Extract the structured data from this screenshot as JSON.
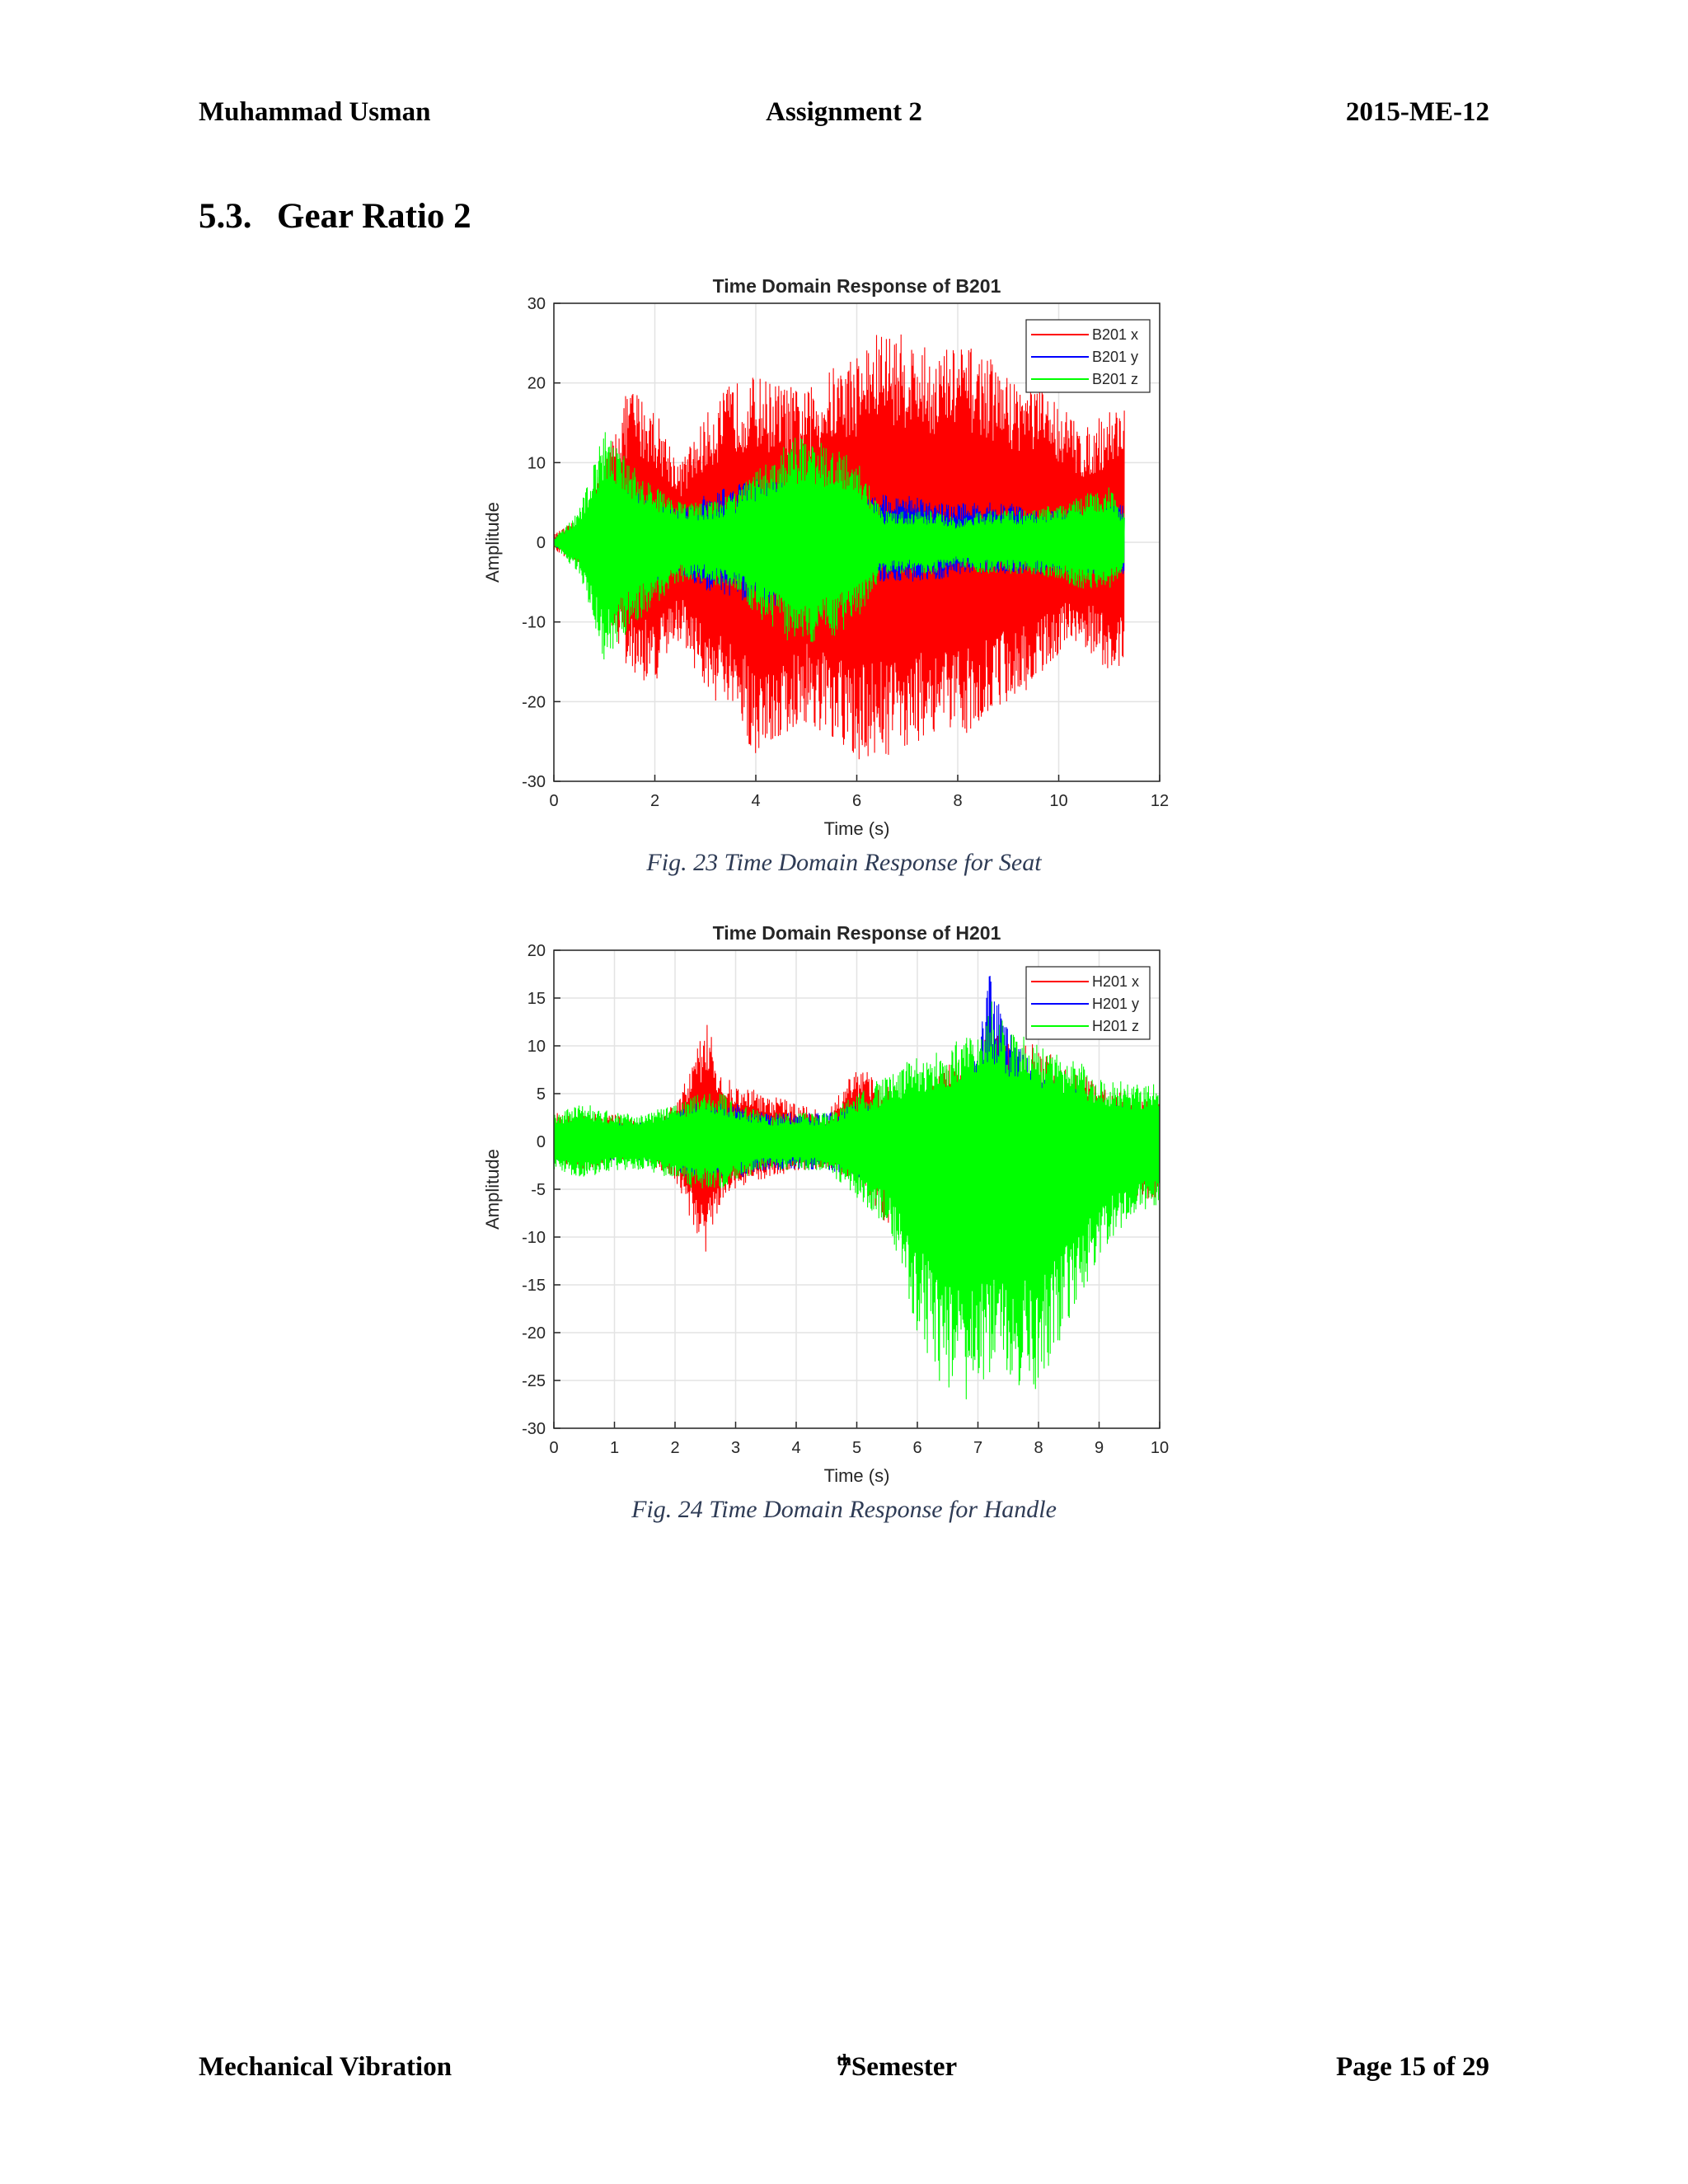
{
  "header": {
    "left": "Muhammad Usman",
    "center": "Assignment 2",
    "right": "2015-ME-12"
  },
  "section": {
    "number": "5.3.",
    "title": "Gear Ratio 2"
  },
  "figures": [
    {
      "caption": "Fig.  23 Time Domain Response for Seat"
    },
    {
      "caption": "Fig.  24 Time Domain Response for Handle"
    }
  ],
  "footer": {
    "left": "Mechanical Vibration",
    "center_num": "7",
    "center_sup": "th",
    "center_rest": " Semester",
    "right": "Page 15 of 29"
  },
  "chart_data": [
    {
      "type": "line",
      "title": "Time Domain Response of B201",
      "xlabel": "Time (s)",
      "ylabel": "Amplitude",
      "xlim": [
        0,
        12
      ],
      "ylim": [
        -30,
        30
      ],
      "xticks": [
        0,
        2,
        4,
        6,
        8,
        10,
        12
      ],
      "yticks": [
        -30,
        -20,
        -10,
        0,
        10,
        20,
        30
      ],
      "grid": true,
      "legend_position": "top-right",
      "series": [
        {
          "name": "B201 x",
          "color": "#ff0000",
          "envelope": {
            "t": [
              0,
              0.5,
              1.0,
              1.5,
              2.0,
              2.5,
              3.0,
              3.5,
              4.0,
              4.5,
              5.0,
              5.5,
              6.0,
              6.5,
              7.0,
              7.5,
              8.0,
              8.5,
              9.0,
              9.5,
              10.0,
              10.5,
              11.0,
              11.3
            ],
            "upper": [
              1,
              3,
              10,
              20,
              17,
              10,
              16,
              20,
              21,
              20,
              19,
              22,
              24,
              27,
              26,
              24,
              25,
              24,
              21,
              20,
              18,
              14,
              17,
              18
            ],
            "lower": [
              -1,
              -3,
              -8,
              -17,
              -18,
              -12,
              -19,
              -22,
              -27,
              -25,
              -23,
              -26,
              -28,
              -27,
              -26,
              -24,
              -25,
              -22,
              -20,
              -18,
              -14,
              -13,
              -17,
              -16
            ]
          }
        },
        {
          "name": "B201 y",
          "color": "#0000ff",
          "envelope": {
            "t": [
              0,
              0.5,
              1.0,
              1.5,
              2.0,
              2.5,
              3.0,
              3.5,
              4.0,
              4.5,
              5.0,
              5.5,
              6.0,
              6.5,
              7.0,
              7.5,
              8.0,
              8.5,
              9.0,
              9.5,
              10.0,
              10.5,
              11.0,
              11.3
            ],
            "upper": [
              0.5,
              2,
              6,
              7,
              5,
              4,
              6,
              7,
              8,
              8,
              7,
              6,
              5,
              6,
              6,
              5,
              5,
              5,
              5,
              4,
              4,
              4,
              5,
              5
            ],
            "lower": [
              -0.5,
              -2,
              -6,
              -7,
              -5,
              -4,
              -6,
              -7,
              -8,
              -8,
              -7,
              -6,
              -5,
              -5,
              -5,
              -5,
              -4,
              -4,
              -4,
              -4,
              -4,
              -4,
              -4,
              -4
            ]
          }
        },
        {
          "name": "B201 z",
          "color": "#00ff00",
          "envelope": {
            "t": [
              0,
              0.5,
              1.0,
              1.5,
              2.0,
              2.5,
              3.0,
              3.5,
              4.0,
              4.5,
              5.0,
              5.5,
              6.0,
              6.5,
              7.0,
              7.5,
              8.0,
              8.5,
              9.0,
              9.5,
              10.0,
              10.5,
              11.0,
              11.3
            ],
            "upper": [
              0.5,
              4,
              14,
              10,
              7,
              5,
              5,
              6,
              9,
              12,
              14,
              12,
              11,
              4,
              4,
              4,
              3,
              4,
              4,
              4,
              5,
              6,
              7,
              4
            ],
            "lower": [
              -0.5,
              -4,
              -15,
              -11,
              -8,
              -5,
              -5,
              -6,
              -9,
              -12,
              -14,
              -12,
              -10,
              -4,
              -4,
              -4,
              -3,
              -4,
              -4,
              -4,
              -5,
              -6,
              -6,
              -4
            ]
          }
        }
      ]
    },
    {
      "type": "line",
      "title": "Time Domain Response of H201",
      "xlabel": "Time (s)",
      "ylabel": "Amplitude",
      "xlim": [
        0,
        10
      ],
      "ylim": [
        -30,
        20
      ],
      "xticks": [
        0,
        1,
        2,
        3,
        4,
        5,
        6,
        7,
        8,
        9,
        10
      ],
      "yticks": [
        -30,
        -25,
        -20,
        -15,
        -10,
        -5,
        0,
        5,
        10,
        15,
        20
      ],
      "grid": true,
      "legend_position": "top-right",
      "series": [
        {
          "name": "H201 x",
          "color": "#ff0000",
          "envelope": {
            "t": [
              0,
              0.5,
              1.0,
              1.5,
              2.0,
              2.3,
              2.5,
              2.8,
              3.0,
              3.5,
              4.0,
              4.5,
              5.0,
              5.5,
              6.0,
              6.5,
              7.0,
              7.2,
              7.5,
              8.0,
              8.5,
              9.0,
              9.5,
              10.0
            ],
            "upper": [
              3,
              3,
              3,
              2,
              4,
              8,
              13,
              7,
              6,
              5,
              4,
              3,
              8,
              6,
              5,
              8,
              10,
              12,
              11,
              10,
              8,
              6,
              5,
              4
            ],
            "lower": [
              -2,
              -3,
              -2,
              -2,
              -4,
              -9,
              -12,
              -6,
              -5,
              -4,
              -3,
              -3,
              -4,
              -9,
              -5,
              -6,
              -12,
              -10,
              -8,
              -11,
              -8,
              -6,
              -6,
              -6
            ]
          }
        },
        {
          "name": "H201 y",
          "color": "#0000ff",
          "envelope": {
            "t": [
              0,
              0.5,
              1.0,
              1.5,
              2.0,
              2.3,
              2.5,
              2.8,
              3.0,
              3.5,
              4.0,
              4.5,
              5.0,
              5.5,
              6.0,
              6.5,
              7.0,
              7.2,
              7.5,
              8.0,
              8.5,
              9.0,
              9.5,
              10.0
            ],
            "upper": [
              2,
              2,
              2,
              2,
              3,
              4,
              4,
              4,
              4,
              3,
              3,
              3,
              4,
              4,
              4,
              5,
              10,
              18,
              12,
              8,
              6,
              4,
              4,
              3
            ],
            "lower": [
              -2,
              -2,
              -2,
              -2,
              -3,
              -4,
              -4,
              -4,
              -4,
              -3,
              -3,
              -3,
              -4,
              -4,
              -4,
              -6,
              -10,
              -12,
              -8,
              -6,
              -5,
              -4,
              -4,
              -3
            ]
          }
        },
        {
          "name": "H201 z",
          "color": "#00ff00",
          "envelope": {
            "t": [
              0,
              0.5,
              1.0,
              1.5,
              2.0,
              2.3,
              2.5,
              2.8,
              3.0,
              3.5,
              4.0,
              4.5,
              5.0,
              5.5,
              6.0,
              6.5,
              7.0,
              7.2,
              7.5,
              8.0,
              8.5,
              9.0,
              9.5,
              10.0
            ],
            "upper": [
              3,
              4,
              3,
              3,
              4,
              5,
              5,
              5,
              4,
              3,
              3,
              3,
              5,
              7,
              9,
              10,
              12,
              15,
              12,
              10,
              9,
              7,
              6,
              6
            ],
            "lower": [
              -3,
              -4,
              -3,
              -3,
              -4,
              -5,
              -5,
              -5,
              -4,
              -3,
              -3,
              -3,
              -6,
              -9,
              -20,
              -27,
              -27,
              -26,
              -26,
              -26,
              -19,
              -12,
              -8,
              -7
            ]
          }
        }
      ]
    }
  ]
}
